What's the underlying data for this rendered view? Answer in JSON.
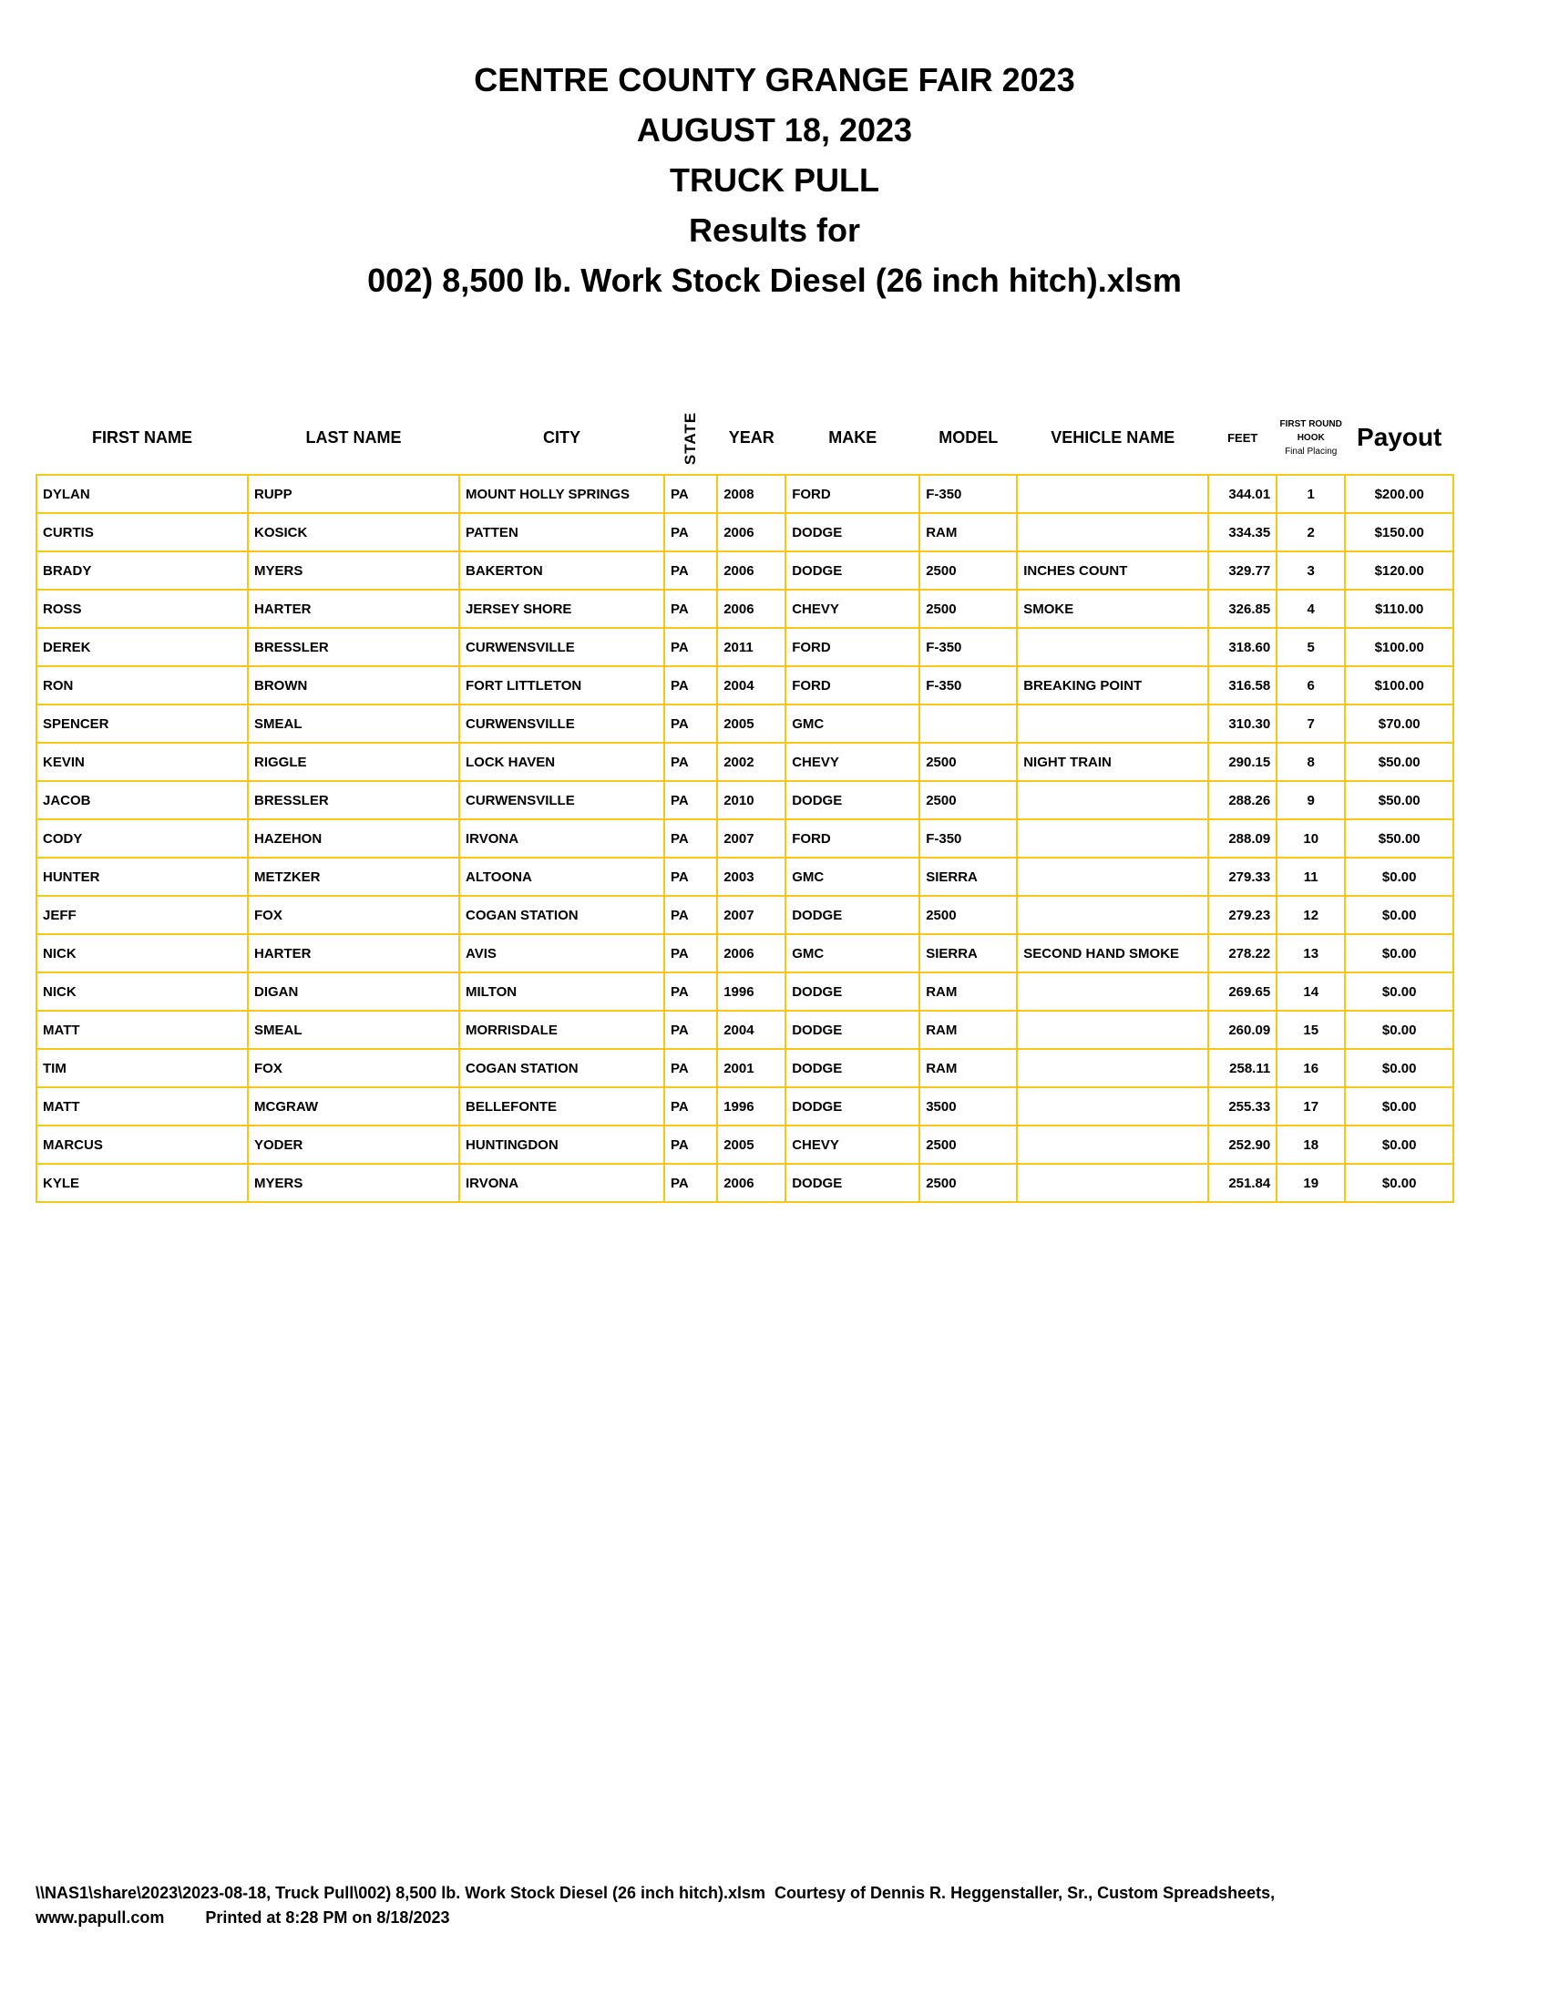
{
  "titles": [
    "CENTRE COUNTY GRANGE FAIR 2023",
    "AUGUST 18, 2023",
    "TRUCK PULL",
    "Results for",
    "002) 8,500 lb. Work Stock Diesel (26 inch hitch).xlsm"
  ],
  "headers": {
    "first": "FIRST NAME",
    "last": "LAST NAME",
    "city": "CITY",
    "state": "STATE",
    "year": "YEAR",
    "make": "MAKE",
    "model": "MODEL",
    "vehicle": "VEHICLE NAME",
    "feet": "FEET",
    "hook1": "FIRST ROUND",
    "hook2": "HOOK",
    "hook3": "Final Placing",
    "payout": "Payout"
  },
  "rows": [
    [
      "DYLAN",
      "RUPP",
      "MOUNT HOLLY SPRINGS",
      "PA",
      "2008",
      "FORD",
      "F-350",
      "",
      "344.01",
      "1",
      "$200.00"
    ],
    [
      "CURTIS",
      "KOSICK",
      "PATTEN",
      "PA",
      "2006",
      "DODGE",
      "RAM",
      "",
      "334.35",
      "2",
      "$150.00"
    ],
    [
      "BRADY",
      "MYERS",
      "BAKERTON",
      "PA",
      "2006",
      "DODGE",
      "2500",
      "INCHES COUNT",
      "329.77",
      "3",
      "$120.00"
    ],
    [
      "ROSS",
      "HARTER",
      "JERSEY SHORE",
      "PA",
      "2006",
      "CHEVY",
      "2500",
      "SMOKE",
      "326.85",
      "4",
      "$110.00"
    ],
    [
      "DEREK",
      "BRESSLER",
      "CURWENSVILLE",
      "PA",
      "2011",
      "FORD",
      "F-350",
      "",
      "318.60",
      "5",
      "$100.00"
    ],
    [
      "RON",
      "BROWN",
      "FORT LITTLETON",
      "PA",
      "2004",
      "FORD",
      "F-350",
      "BREAKING POINT",
      "316.58",
      "6",
      "$100.00"
    ],
    [
      "SPENCER",
      "SMEAL",
      "CURWENSVILLE",
      "PA",
      "2005",
      "GMC",
      "",
      "",
      "310.30",
      "7",
      "$70.00"
    ],
    [
      "KEVIN",
      "RIGGLE",
      "LOCK HAVEN",
      "PA",
      "2002",
      "CHEVY",
      "2500",
      "NIGHT TRAIN",
      "290.15",
      "8",
      "$50.00"
    ],
    [
      "JACOB",
      "BRESSLER",
      "CURWENSVILLE",
      "PA",
      "2010",
      "DODGE",
      "2500",
      "",
      "288.26",
      "9",
      "$50.00"
    ],
    [
      "CODY",
      "HAZEHON",
      "IRVONA",
      "PA",
      "2007",
      "FORD",
      "F-350",
      "",
      "288.09",
      "10",
      "$50.00"
    ],
    [
      "HUNTER",
      "METZKER",
      "ALTOONA",
      "PA",
      "2003",
      "GMC",
      "SIERRA",
      "",
      "279.33",
      "11",
      "$0.00"
    ],
    [
      "JEFF",
      "FOX",
      "COGAN STATION",
      "PA",
      "2007",
      "DODGE",
      "2500",
      "",
      "279.23",
      "12",
      "$0.00"
    ],
    [
      "NICK",
      "HARTER",
      "AVIS",
      "PA",
      "2006",
      "GMC",
      "SIERRA",
      "SECOND HAND SMOKE",
      "278.22",
      "13",
      "$0.00"
    ],
    [
      "NICK",
      "DIGAN",
      "MILTON",
      "PA",
      "1996",
      "DODGE",
      "RAM",
      "",
      "269.65",
      "14",
      "$0.00"
    ],
    [
      "MATT",
      "SMEAL",
      "MORRISDALE",
      "PA",
      "2004",
      "DODGE",
      "RAM",
      "",
      "260.09",
      "15",
      "$0.00"
    ],
    [
      "TIM",
      "FOX",
      "COGAN STATION",
      "PA",
      "2001",
      "DODGE",
      "RAM",
      "",
      "258.11",
      "16",
      "$0.00"
    ],
    [
      "MATT",
      "MCGRAW",
      "BELLEFONTE",
      "PA",
      "1996",
      "DODGE",
      "3500",
      "",
      "255.33",
      "17",
      "$0.00"
    ],
    [
      "MARCUS",
      "YODER",
      "HUNTINGDON",
      "PA",
      "2005",
      "CHEVY",
      "2500",
      "",
      "252.90",
      "18",
      "$0.00"
    ],
    [
      "KYLE",
      "MYERS",
      "IRVONA",
      "PA",
      "2006",
      "DODGE",
      "2500",
      "",
      "251.84",
      "19",
      "$0.00"
    ]
  ],
  "footer": {
    "line1": "\\\\NAS1\\share\\2023\\2023-08-18, Truck Pull\\002) 8,500 lb. Work Stock Diesel (26 inch hitch).xlsm  Courtesy of Dennis R. Heggenstaller, Sr., Custom Spreadsheets,",
    "website": "www.papull.com",
    "printed": "Printed at 8:28 PM on 8/18/2023"
  },
  "colors": {
    "border": "#f6c813"
  }
}
